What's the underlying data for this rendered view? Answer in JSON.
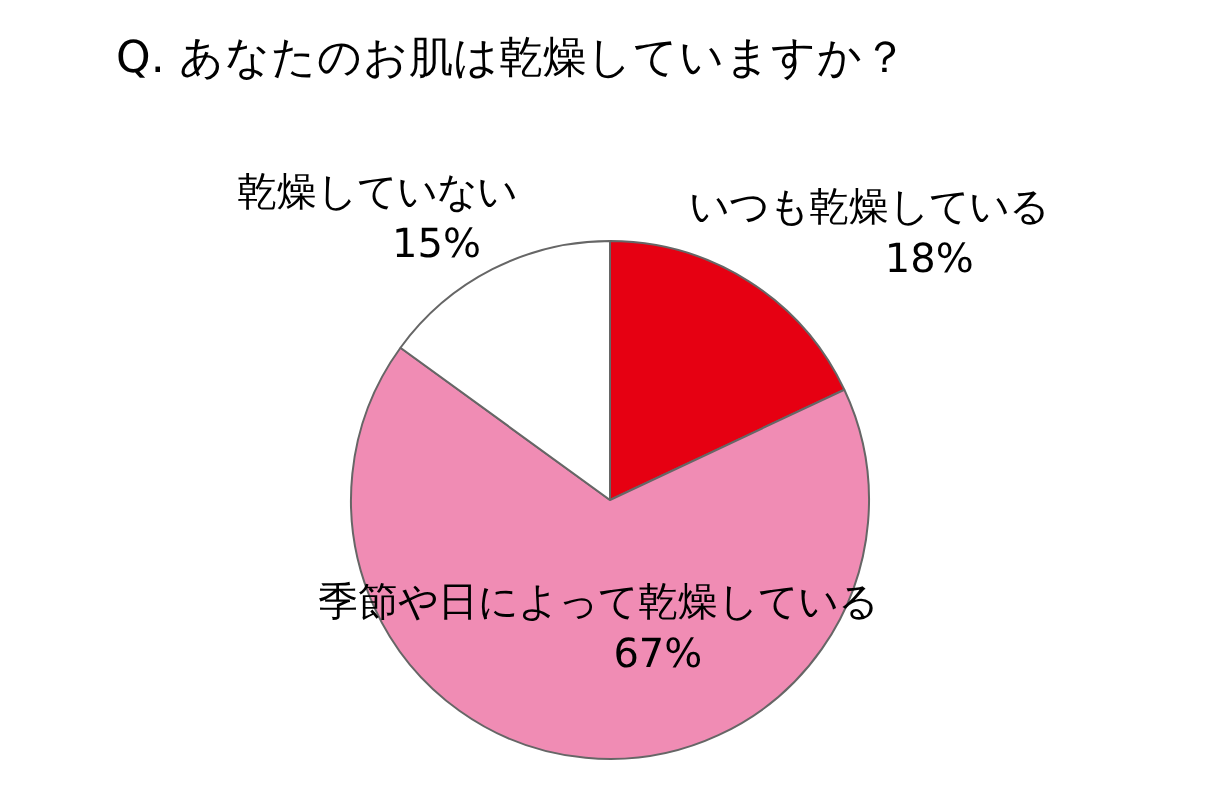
{
  "chart_data": {
    "type": "pie",
    "title": "Q. あなたのお肌は乾燥していますか？",
    "categories": [
      "いつも乾燥している",
      "季節や日によって乾燥している",
      "乾燥していない"
    ],
    "values": [
      18,
      67,
      15
    ],
    "colors": [
      "#e60012",
      "#f08cb4",
      "#ffffff"
    ],
    "value_labels": [
      "18%",
      "67%",
      "15%"
    ],
    "legend": false
  }
}
